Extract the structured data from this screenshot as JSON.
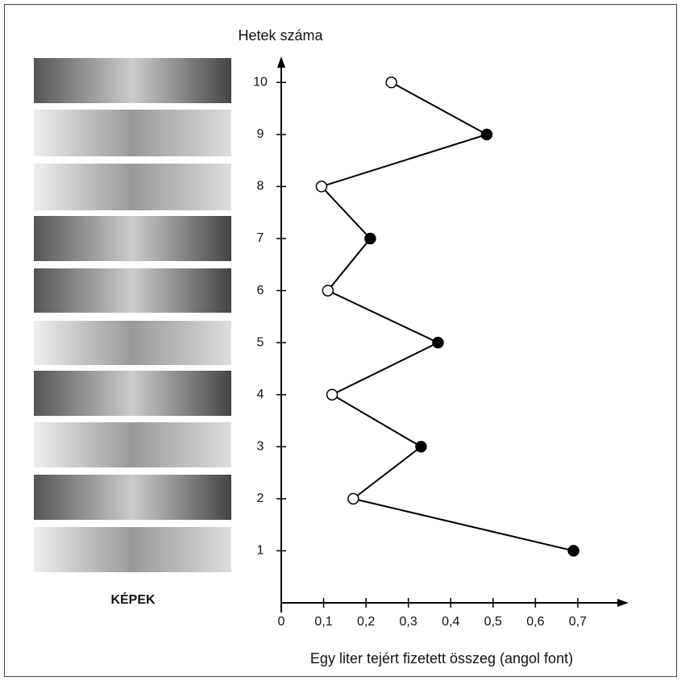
{
  "chart_data": {
    "type": "line",
    "y_label": "Hetek száma",
    "x_label": "Egy liter tejért fizetett összeg (angol font)",
    "side_label": "KÉPEK",
    "y": [
      1,
      2,
      3,
      4,
      5,
      6,
      7,
      8,
      9,
      10
    ],
    "series": [
      {
        "color": "#000000",
        "values": [
          0.69,
          0.17,
          0.33,
          0.12,
          0.37,
          0.11,
          0.21,
          0.095,
          0.485,
          0.26
        ],
        "point_colors": [
          "#000000",
          "#ffffff",
          "#000000",
          "#ffffff",
          "#000000",
          "#ffffff",
          "#000000",
          "#ffffff",
          "#000000",
          "#ffffff"
        ]
      }
    ],
    "xlim": [
      0,
      0.82
    ],
    "xticks": [
      0,
      {
        "value": 0.1,
        "label": "0,1"
      },
      {
        "value": 0.2,
        "label": "0,2"
      },
      {
        "value": 0.3,
        "label": "0,3"
      },
      {
        "value": 0.4,
        "label": "0,4"
      },
      {
        "value": 0.5,
        "label": "0,5"
      },
      {
        "value": 0.6,
        "label": "0,6"
      },
      {
        "value": 0.7,
        "label": "0,7"
      }
    ],
    "ylim": [
      0,
      10.5
    ],
    "yticks": [
      1,
      2,
      3,
      4,
      5,
      6,
      7,
      8,
      9,
      10
    ],
    "grid": false
  }
}
